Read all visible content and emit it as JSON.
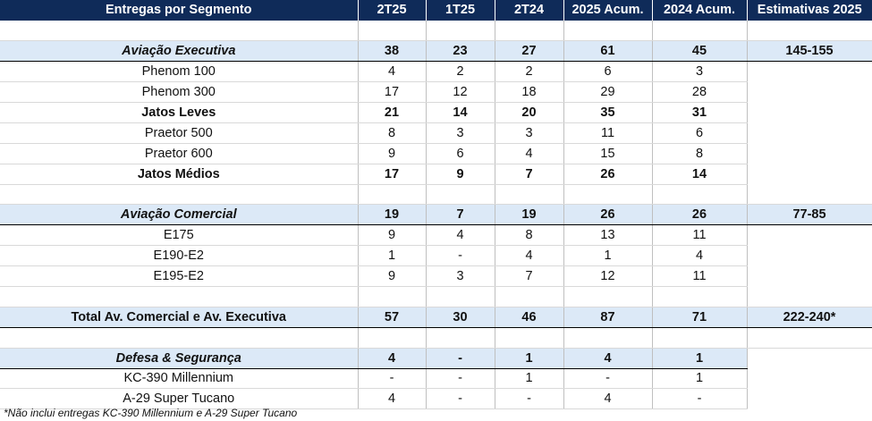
{
  "header": [
    "Entregas por Segmento",
    "2T25",
    "1T25",
    "2T24",
    "2025 Acum.",
    "2024 Acum.",
    "Estimativas 2025"
  ],
  "rows": [
    {
      "type": "blank",
      "cells": [
        "",
        "",
        "",
        "",
        "",
        "",
        ""
      ]
    },
    {
      "type": "seg",
      "cells": [
        "Aviação Executiva",
        "38",
        "23",
        "27",
        "61",
        "45",
        "145-155"
      ]
    },
    {
      "type": "item",
      "cells": [
        "Phenom 100",
        "4",
        "2",
        "2",
        "6",
        "3",
        ""
      ]
    },
    {
      "type": "item",
      "cells": [
        "Phenom 300",
        "17",
        "12",
        "18",
        "29",
        "28",
        ""
      ]
    },
    {
      "type": "sub",
      "cells": [
        "Jatos Leves",
        "21",
        "14",
        "20",
        "35",
        "31",
        ""
      ]
    },
    {
      "type": "item",
      "cells": [
        "Praetor 500",
        "8",
        "3",
        "3",
        "11",
        "6",
        ""
      ]
    },
    {
      "type": "item",
      "cells": [
        "Praetor 600",
        "9",
        "6",
        "4",
        "15",
        "8",
        ""
      ]
    },
    {
      "type": "sub",
      "cells": [
        "Jatos Médios",
        "17",
        "9",
        "7",
        "26",
        "14",
        ""
      ]
    },
    {
      "type": "blank",
      "cells": [
        "",
        "",
        "",
        "",
        "",
        "",
        ""
      ]
    },
    {
      "type": "seg",
      "cells": [
        "Aviação Comercial",
        "19",
        "7",
        "19",
        "26",
        "26",
        "77-85"
      ]
    },
    {
      "type": "item",
      "cells": [
        "E175",
        "9",
        "4",
        "8",
        "13",
        "11",
        ""
      ]
    },
    {
      "type": "item",
      "cells": [
        "E190-E2",
        "1",
        "-",
        "4",
        "1",
        "4",
        ""
      ]
    },
    {
      "type": "item",
      "cells": [
        "E195-E2",
        "9",
        "3",
        "7",
        "12",
        "11",
        ""
      ]
    },
    {
      "type": "blank",
      "cells": [
        "",
        "",
        "",
        "",
        "",
        "",
        ""
      ]
    },
    {
      "type": "total",
      "cells": [
        "Total Av. Comercial e Av. Executiva",
        "57",
        "30",
        "46",
        "87",
        "71",
        "222-240*"
      ]
    },
    {
      "type": "blank",
      "cells": [
        "",
        "",
        "",
        "",
        "",
        "",
        ""
      ]
    },
    {
      "type": "seg",
      "cells": [
        "Defesa & Segurança",
        "4",
        "-",
        "1",
        "4",
        "1",
        ""
      ]
    },
    {
      "type": "item",
      "cells": [
        "KC-390 Millennium",
        "-",
        "-",
        "1",
        "-",
        "1",
        ""
      ]
    },
    {
      "type": "item",
      "cells": [
        "A-29 Super Tucano",
        "4",
        "-",
        "-",
        "4",
        "-",
        ""
      ]
    }
  ],
  "footnote": "*Não inclui entregas KC-390 Millennium e A-29 Super Tucano"
}
